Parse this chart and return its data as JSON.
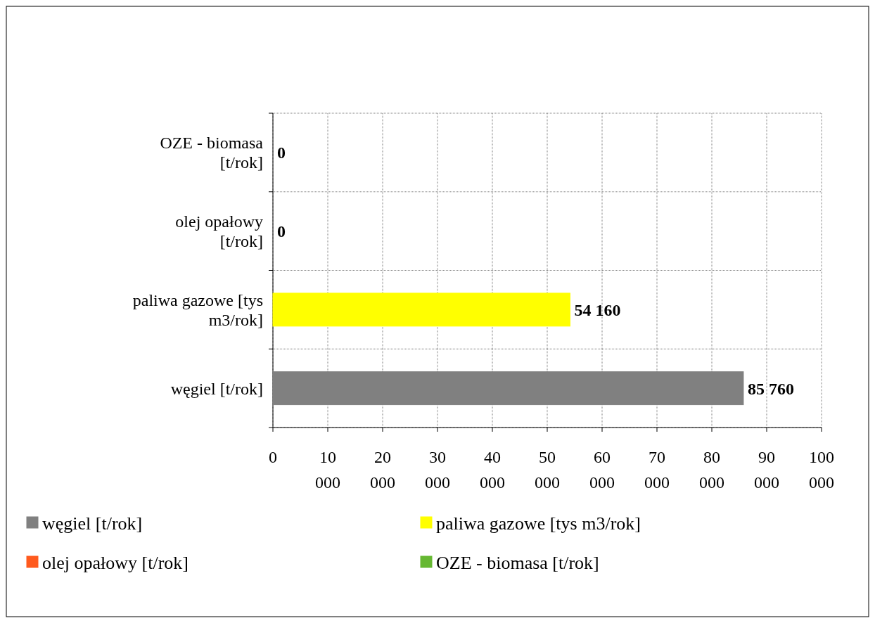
{
  "chart_data": {
    "type": "bar",
    "orientation": "horizontal",
    "categories": [
      "OZE - biomasa [t/rok]",
      "olej opałowy [t/rok]",
      "paliwa gazowe [tys m3/rok]",
      "węgiel [t/rok]"
    ],
    "series": [
      {
        "name": "węgiel [t/rok]",
        "color": "#808080",
        "values": [
          null,
          null,
          null,
          85760
        ]
      },
      {
        "name": "paliwa gazowe [tys m3/rok]",
        "color": "#ffff00",
        "values": [
          null,
          null,
          54160,
          null
        ]
      },
      {
        "name": "olej opałowy [t/rok]",
        "color": "#ff5a1e",
        "values": [
          null,
          0,
          null,
          null
        ]
      },
      {
        "name": "OZE - biomasa [t/rok]",
        "color": "#66b832",
        "values": [
          0,
          null,
          null,
          null
        ]
      }
    ],
    "xlim": [
      0,
      100000
    ],
    "xticks": [
      0,
      {
        "value": 10000,
        "label": "10 000"
      },
      {
        "value": 20000,
        "label": "20 000"
      },
      {
        "value": 30000,
        "label": "30 000"
      },
      {
        "value": 40000,
        "label": "40 000"
      },
      {
        "value": 50000,
        "label": "50 000"
      },
      {
        "value": 60000,
        "label": "60 000"
      },
      {
        "value": 70000,
        "label": "70 000"
      },
      {
        "value": 80000,
        "label": "80 000"
      },
      {
        "value": 90000,
        "label": "90 000"
      },
      {
        "value": 100000,
        "label": "100 000"
      }
    ],
    "grid": true,
    "data_labels": true,
    "legend": "bottom"
  }
}
